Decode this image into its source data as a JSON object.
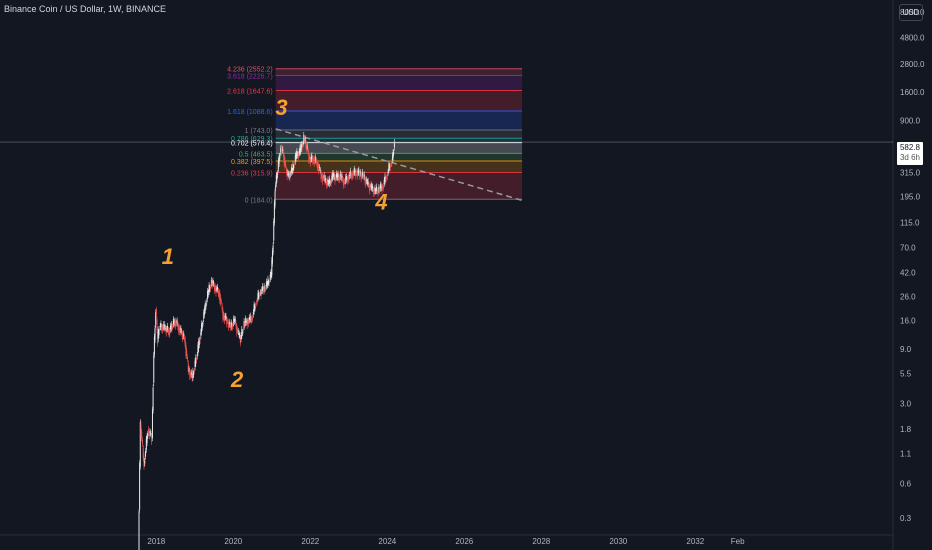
{
  "header": {
    "symbol_line": "Binance Coin / US Dollar, 1W, BINANCE"
  },
  "currency_button": "USD",
  "last_price": "582.8",
  "countdown": "3d 6h",
  "colors": {
    "background": "#131722",
    "up": "#e8e8e8",
    "down": "#ef5350",
    "wave_label": "#f5a030"
  },
  "chart_data": {
    "type": "candlestick",
    "y_scale": "log",
    "ylim": [
      0.15,
      12000
    ],
    "y_ticks": [
      "8000.0",
      "4800.0",
      "2800.0",
      "1600.0",
      "900.0",
      "315.0",
      "195.0",
      "115.0",
      "70.0",
      "42.0",
      "26.0",
      "16.0",
      "9.0",
      "5.5",
      "3.0",
      "1.8",
      "1.1",
      "0.6",
      "0.3"
    ],
    "x_ticks": [
      "2018",
      "2020",
      "2022",
      "2024",
      "2026",
      "2028",
      "2030",
      "2032",
      "Feb"
    ],
    "fib_levels": [
      {
        "ratio": "4.236",
        "price": 2552.2,
        "label": "4.236 (2552.2)",
        "color": "#e04e6d"
      },
      {
        "ratio": "3.618",
        "price": 2226.7,
        "label": "3.618 (2226.7)",
        "color": "#9c27b0"
      },
      {
        "ratio": "2.618",
        "price": 1647.6,
        "label": "2.618 (1647.6)",
        "color": "#f23645"
      },
      {
        "ratio": "1.618",
        "price": 1088.6,
        "label": "1.618 (1088.6)",
        "color": "#2962ff"
      },
      {
        "ratio": "1",
        "price": 743.0,
        "label": "1 (743.0)",
        "color": "#787b86"
      },
      {
        "ratio": "0.786",
        "price": 629.3,
        "label": "0.786 (629.3)",
        "color": "#26a69a"
      },
      {
        "ratio": "0.702",
        "price": 576.4,
        "label": "0.702 (576.4)",
        "color": "#ffffff"
      },
      {
        "ratio": "0.5",
        "price": 463.5,
        "label": "0.5 (463.5)",
        "color": "#4caf50"
      },
      {
        "ratio": "0.382",
        "price": 397.5,
        "label": "0.382 (397.5)",
        "color": "#ff9800"
      },
      {
        "ratio": "0.236",
        "price": 315.9,
        "label": "0.236 (315.9)",
        "color": "#f23645"
      },
      {
        "ratio": "0",
        "price": 184.0,
        "label": "0 (184.0)",
        "color": "#787b86"
      }
    ],
    "wave_labels": [
      {
        "text": "1",
        "date": 2018.3,
        "price": 50
      },
      {
        "text": "2",
        "date": 2020.1,
        "price": 4.2
      },
      {
        "text": "3",
        "date": 2021.25,
        "price": 1000
      },
      {
        "text": "4",
        "date": 2023.85,
        "price": 150
      }
    ],
    "trendline": {
      "from": {
        "date": 2021.1,
        "price": 760
      },
      "to": {
        "date": 2027.5,
        "price": 180
      }
    },
    "series": [
      {
        "d": 2017.55,
        "p": 0.15
      },
      {
        "d": 2017.6,
        "p": 2.0
      },
      {
        "d": 2017.7,
        "p": 0.9
      },
      {
        "d": 2017.8,
        "p": 1.8
      },
      {
        "d": 2017.9,
        "p": 1.5
      },
      {
        "d": 2017.95,
        "p": 8
      },
      {
        "d": 2018.0,
        "p": 20
      },
      {
        "d": 2018.05,
        "p": 11
      },
      {
        "d": 2018.1,
        "p": 14
      },
      {
        "d": 2018.2,
        "p": 14
      },
      {
        "d": 2018.35,
        "p": 13
      },
      {
        "d": 2018.5,
        "p": 16
      },
      {
        "d": 2018.6,
        "p": 14
      },
      {
        "d": 2018.75,
        "p": 11
      },
      {
        "d": 2018.85,
        "p": 6
      },
      {
        "d": 2018.95,
        "p": 5
      },
      {
        "d": 2019.1,
        "p": 9
      },
      {
        "d": 2019.25,
        "p": 18
      },
      {
        "d": 2019.35,
        "p": 27
      },
      {
        "d": 2019.45,
        "p": 35
      },
      {
        "d": 2019.55,
        "p": 31
      },
      {
        "d": 2019.65,
        "p": 28
      },
      {
        "d": 2019.75,
        "p": 18
      },
      {
        "d": 2019.85,
        "p": 16
      },
      {
        "d": 2019.95,
        "p": 14
      },
      {
        "d": 2020.05,
        "p": 16
      },
      {
        "d": 2020.15,
        "p": 12
      },
      {
        "d": 2020.2,
        "p": 11
      },
      {
        "d": 2020.3,
        "p": 15
      },
      {
        "d": 2020.4,
        "p": 16
      },
      {
        "d": 2020.5,
        "p": 17
      },
      {
        "d": 2020.6,
        "p": 23
      },
      {
        "d": 2020.7,
        "p": 28
      },
      {
        "d": 2020.8,
        "p": 30
      },
      {
        "d": 2020.9,
        "p": 33
      },
      {
        "d": 2021.0,
        "p": 40
      },
      {
        "d": 2021.05,
        "p": 80
      },
      {
        "d": 2021.1,
        "p": 230
      },
      {
        "d": 2021.15,
        "p": 300
      },
      {
        "d": 2021.25,
        "p": 530
      },
      {
        "d": 2021.32,
        "p": 450
      },
      {
        "d": 2021.38,
        "p": 340
      },
      {
        "d": 2021.45,
        "p": 290
      },
      {
        "d": 2021.55,
        "p": 330
      },
      {
        "d": 2021.65,
        "p": 440
      },
      {
        "d": 2021.75,
        "p": 480
      },
      {
        "d": 2021.85,
        "p": 620
      },
      {
        "d": 2021.9,
        "p": 560
      },
      {
        "d": 2022.0,
        "p": 410
      },
      {
        "d": 2022.1,
        "p": 420
      },
      {
        "d": 2022.2,
        "p": 380
      },
      {
        "d": 2022.3,
        "p": 300
      },
      {
        "d": 2022.4,
        "p": 270
      },
      {
        "d": 2022.5,
        "p": 250
      },
      {
        "d": 2022.6,
        "p": 290
      },
      {
        "d": 2022.7,
        "p": 285
      },
      {
        "d": 2022.8,
        "p": 290
      },
      {
        "d": 2022.9,
        "p": 260
      },
      {
        "d": 2023.0,
        "p": 290
      },
      {
        "d": 2023.1,
        "p": 310
      },
      {
        "d": 2023.2,
        "p": 320
      },
      {
        "d": 2023.3,
        "p": 310
      },
      {
        "d": 2023.4,
        "p": 290
      },
      {
        "d": 2023.5,
        "p": 250
      },
      {
        "d": 2023.6,
        "p": 230
      },
      {
        "d": 2023.7,
        "p": 215
      },
      {
        "d": 2023.8,
        "p": 225
      },
      {
        "d": 2023.9,
        "p": 240
      },
      {
        "d": 2024.0,
        "p": 300
      },
      {
        "d": 2024.1,
        "p": 380
      },
      {
        "d": 2024.15,
        "p": 420
      },
      {
        "d": 2024.2,
        "p": 582.8
      }
    ]
  }
}
